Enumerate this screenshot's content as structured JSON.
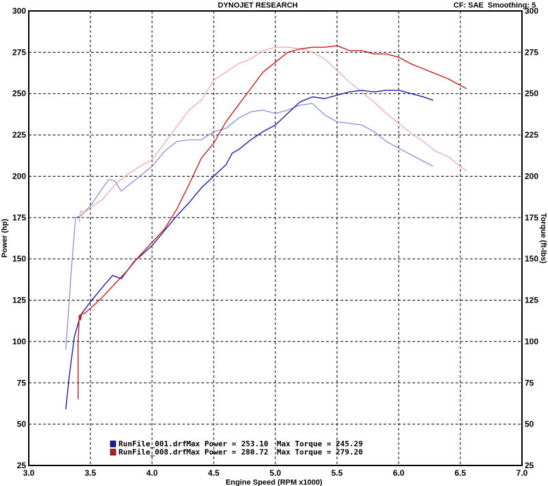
{
  "header": {
    "title": "DYNOJET RESEARCH",
    "cf_label": "CF: SAE",
    "smoothing_label": "Smoothing: 5"
  },
  "colors": {
    "run_001": "#1a1aa8",
    "run_008": "#c21a1a",
    "run_001_torque": "#8080d8",
    "run_008_torque": "#f0a0a8",
    "grid": "#000000",
    "background": "#ffffff"
  },
  "legend": [
    {
      "file": "RunFile_001.drf",
      "max_power_label": "Max Power =",
      "max_power": "253.10",
      "max_torque_label": "Max Torque =",
      "max_torque": "245.29"
    },
    {
      "file": "RunFile_008.drf",
      "max_power_label": "Max Power =",
      "max_power": "280.72",
      "max_torque_label": "Max Torque =",
      "max_torque": "279.20"
    }
  ],
  "chart_data": {
    "type": "line",
    "title": "DYNOJET RESEARCH",
    "xlabel": "Engine Speed (RPM x1000)",
    "ylabel": "Power (hp)",
    "y2label": "Torque (ft-lbs)",
    "xlim": [
      3.0,
      7.0
    ],
    "ylim": [
      25,
      300
    ],
    "y2lim": [
      25,
      300
    ],
    "x_ticks": [
      "3.0",
      "3.5",
      "4.0",
      "4.5",
      "5.0",
      "5.5",
      "6.0",
      "6.5",
      "7.0"
    ],
    "y_ticks": [
      "25",
      "50",
      "75",
      "100",
      "125",
      "150",
      "175",
      "200",
      "225",
      "250",
      "275",
      "300"
    ],
    "grid": true,
    "legend_position": "bottom-left",
    "series": [
      {
        "name": "RunFile_001.drf Power",
        "axis": "left",
        "color": "#1a1aa8",
        "x": [
          3.3,
          3.33,
          3.37,
          3.42,
          3.5,
          3.6,
          3.68,
          3.75,
          3.85,
          4.0,
          4.1,
          4.2,
          4.3,
          4.4,
          4.5,
          4.6,
          4.65,
          4.7,
          4.8,
          4.9,
          5.0,
          5.1,
          5.2,
          5.3,
          5.4,
          5.5,
          5.6,
          5.7,
          5.8,
          5.9,
          6.0,
          6.1,
          6.2,
          6.28
        ],
        "y": [
          59,
          80,
          103,
          116,
          124,
          133,
          140,
          138,
          148,
          158,
          167,
          176,
          184,
          193,
          200,
          207,
          214,
          216,
          222,
          227,
          231,
          238,
          245,
          248,
          247,
          249,
          251,
          252,
          251,
          252,
          252,
          250,
          248,
          246
        ]
      },
      {
        "name": "RunFile_008.drf Power",
        "axis": "left",
        "color": "#c21a1a",
        "x": [
          3.4,
          3.4,
          3.41,
          3.42,
          3.43,
          3.45,
          3.5,
          3.6,
          3.7,
          3.8,
          3.9,
          4.0,
          4.1,
          4.2,
          4.3,
          4.4,
          4.5,
          4.6,
          4.7,
          4.8,
          4.9,
          5.0,
          5.1,
          5.2,
          5.3,
          5.4,
          5.5,
          5.6,
          5.7,
          5.8,
          5.9,
          6.0,
          6.1,
          6.2,
          6.3,
          6.4,
          6.5,
          6.55
        ],
        "y": [
          65,
          100,
          116,
          113,
          117,
          117,
          120,
          127,
          135,
          143,
          152,
          160,
          168,
          180,
          195,
          211,
          220,
          233,
          243,
          253,
          263,
          269,
          275,
          277,
          278,
          278,
          279,
          276,
          276,
          274,
          274,
          272,
          268,
          265,
          262,
          259,
          255,
          253
        ]
      },
      {
        "name": "RunFile_001.drf Torque",
        "axis": "right",
        "color": "#8080d8",
        "x": [
          3.3,
          3.35,
          3.38,
          3.42,
          3.5,
          3.6,
          3.65,
          3.7,
          3.75,
          3.85,
          4.0,
          4.1,
          4.2,
          4.3,
          4.4,
          4.5,
          4.6,
          4.7,
          4.8,
          4.9,
          5.0,
          5.1,
          5.2,
          5.3,
          5.4,
          5.5,
          5.6,
          5.7,
          5.8,
          5.9,
          6.0,
          6.1,
          6.2,
          6.28
        ],
        "y": [
          95,
          148,
          175,
          176,
          182,
          193,
          198,
          197,
          191,
          197,
          206,
          215,
          221,
          222,
          222,
          227,
          229,
          235,
          239,
          240,
          238,
          240,
          243,
          244,
          237,
          233,
          232,
          231,
          227,
          221,
          217,
          213,
          209,
          206
        ]
      },
      {
        "name": "RunFile_008.drf Torque",
        "axis": "right",
        "color": "#f0a0a8",
        "x": [
          3.41,
          3.42,
          3.45,
          3.5,
          3.6,
          3.7,
          3.8,
          3.9,
          4.0,
          4.1,
          4.2,
          4.3,
          4.4,
          4.5,
          4.6,
          4.7,
          4.8,
          4.9,
          5.0,
          5.1,
          5.2,
          5.3,
          5.4,
          5.5,
          5.6,
          5.7,
          5.8,
          5.9,
          6.0,
          6.1,
          6.2,
          6.3,
          6.4,
          6.5,
          6.55
        ],
        "y": [
          172,
          179,
          178,
          181,
          186,
          195,
          201,
          206,
          210,
          220,
          230,
          240,
          246,
          258,
          263,
          268,
          271,
          276,
          278,
          278,
          277,
          275,
          271,
          264,
          257,
          251,
          245,
          238,
          232,
          226,
          221,
          215,
          212,
          206,
          203
        ]
      }
    ]
  }
}
